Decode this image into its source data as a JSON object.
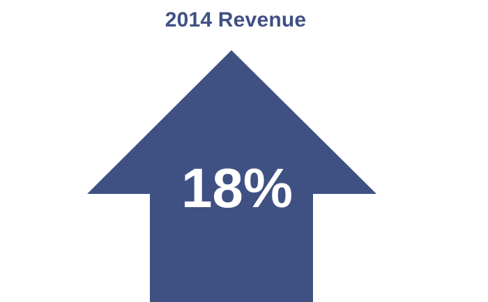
{
  "infographic": {
    "title": "2014 Revenue",
    "value": "18%",
    "direction": "up",
    "arrow_icon": "arrow-up-icon",
    "arrow_color": "#3f5083",
    "text_color": "#ffffff"
  }
}
